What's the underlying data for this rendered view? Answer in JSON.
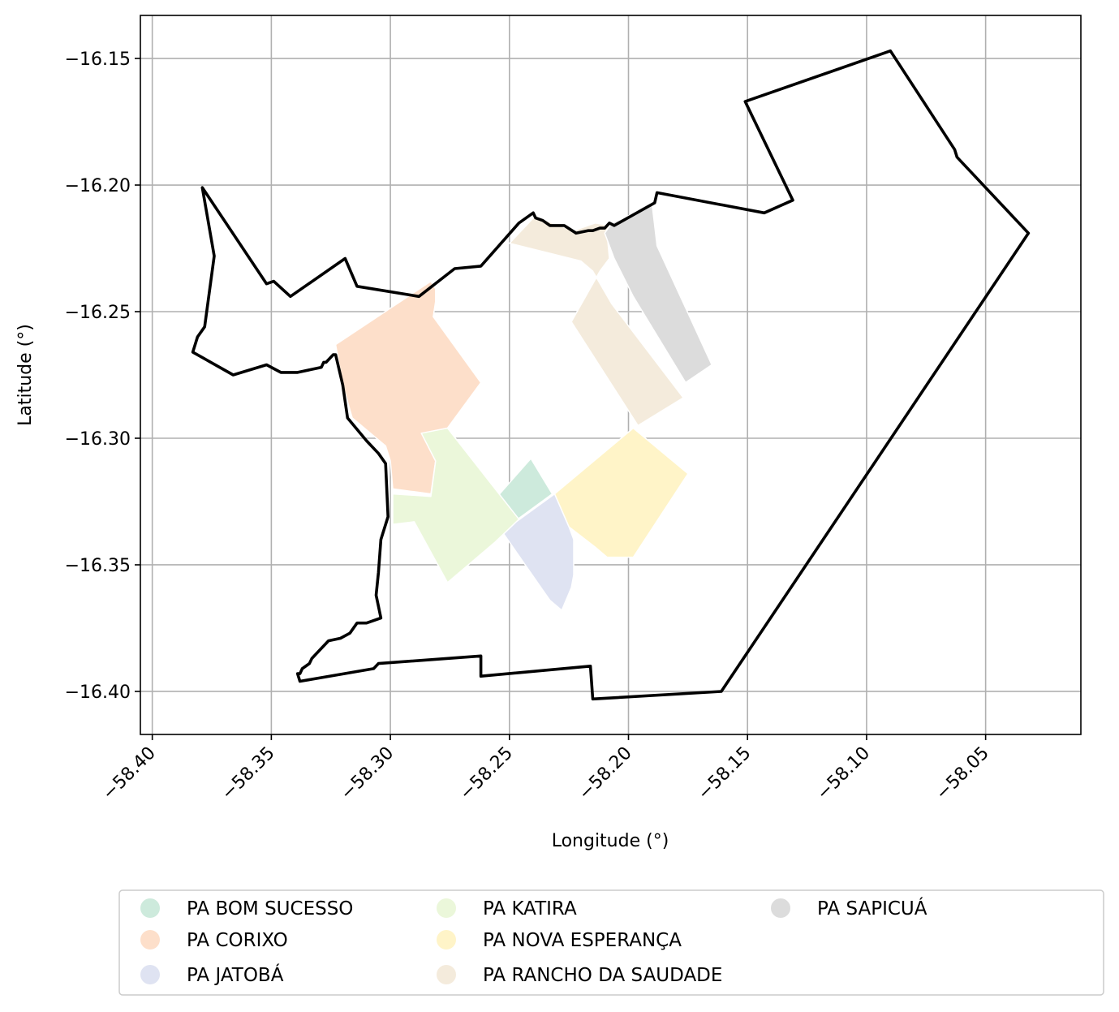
{
  "map": {
    "xlabel": "Longitude (°)",
    "ylabel": "Latitude (°)",
    "xlim": [
      -58.405,
      -58.01
    ],
    "ylim": [
      -16.417,
      -16.133
    ],
    "x_ticks": [
      -58.4,
      -58.35,
      -58.3,
      -58.25,
      -58.2,
      -58.15,
      -58.1,
      -58.05
    ],
    "x_tick_labels": [
      "−58.40",
      "−58.35",
      "−58.30",
      "−58.25",
      "−58.20",
      "−58.15",
      "−58.10",
      "−58.05"
    ],
    "y_ticks": [
      -16.15,
      -16.2,
      -16.25,
      -16.3,
      -16.35,
      -16.4
    ],
    "y_tick_labels": [
      "−16.15",
      "−16.20",
      "−16.25",
      "−16.30",
      "−16.35",
      "−16.40"
    ],
    "grid": true,
    "boundary": {
      "color": "#000000",
      "coords": [
        [
          -58.379,
          -16.201
        ],
        [
          -58.374,
          -16.228
        ],
        [
          -58.378,
          -16.256
        ],
        [
          -58.381,
          -16.26
        ],
        [
          -58.383,
          -16.266
        ],
        [
          -58.366,
          -16.275
        ],
        [
          -58.352,
          -16.271
        ],
        [
          -58.346,
          -16.274
        ],
        [
          -58.339,
          -16.274
        ],
        [
          -58.329,
          -16.272
        ],
        [
          -58.328,
          -16.27
        ],
        [
          -58.327,
          -16.27
        ],
        [
          -58.324,
          -16.267
        ],
        [
          -58.323,
          -16.267
        ],
        [
          -58.32,
          -16.279
        ],
        [
          -58.318,
          -16.292
        ],
        [
          -58.31,
          -16.301
        ],
        [
          -58.305,
          -16.306
        ],
        [
          -58.302,
          -16.31
        ],
        [
          -58.301,
          -16.331
        ],
        [
          -58.304,
          -16.34
        ],
        [
          -58.305,
          -16.353
        ],
        [
          -58.306,
          -16.362
        ],
        [
          -58.304,
          -16.371
        ],
        [
          -58.31,
          -16.373
        ],
        [
          -58.314,
          -16.373
        ],
        [
          -58.317,
          -16.377
        ],
        [
          -58.321,
          -16.379
        ],
        [
          -58.326,
          -16.38
        ],
        [
          -58.33,
          -16.384
        ],
        [
          -58.333,
          -16.387
        ],
        [
          -58.334,
          -16.389
        ],
        [
          -58.337,
          -16.391
        ],
        [
          -58.338,
          -16.393
        ],
        [
          -58.339,
          -16.393
        ],
        [
          -58.338,
          -16.396
        ],
        [
          -58.307,
          -16.391
        ],
        [
          -58.305,
          -16.389
        ],
        [
          -58.262,
          -16.386
        ],
        [
          -58.262,
          -16.394
        ],
        [
          -58.216,
          -16.39
        ],
        [
          -58.215,
          -16.403
        ],
        [
          -58.161,
          -16.4
        ],
        [
          -58.032,
          -16.219
        ],
        [
          -58.062,
          -16.189
        ],
        [
          -58.063,
          -16.186
        ],
        [
          -58.09,
          -16.147
        ],
        [
          -58.151,
          -16.167
        ],
        [
          -58.131,
          -16.206
        ],
        [
          -58.143,
          -16.211
        ],
        [
          -58.188,
          -16.203
        ],
        [
          -58.189,
          -16.207
        ],
        [
          -58.206,
          -16.216
        ],
        [
          -58.208,
          -16.215
        ],
        [
          -58.21,
          -16.217
        ],
        [
          -58.212,
          -16.217
        ],
        [
          -58.215,
          -16.218
        ],
        [
          -58.217,
          -16.218
        ],
        [
          -58.222,
          -16.219
        ],
        [
          -58.227,
          -16.216
        ],
        [
          -58.233,
          -16.216
        ],
        [
          -58.236,
          -16.214
        ],
        [
          -58.239,
          -16.213
        ],
        [
          -58.24,
          -16.211
        ],
        [
          -58.246,
          -16.215
        ],
        [
          -58.262,
          -16.232
        ],
        [
          -58.273,
          -16.233
        ],
        [
          -58.288,
          -16.244
        ],
        [
          -58.314,
          -16.24
        ],
        [
          -58.319,
          -16.229
        ],
        [
          -58.342,
          -16.244
        ],
        [
          -58.349,
          -16.238
        ],
        [
          -58.352,
          -16.239
        ],
        [
          -58.379,
          -16.201
        ]
      ]
    },
    "settlements": [
      {
        "name": "PA BOM SUCESSO",
        "color": "#cdeadc",
        "coords": [
          [
            -58.256,
            -16.324
          ],
          [
            -58.241,
            -16.308
          ],
          [
            -58.232,
            -16.322
          ],
          [
            -58.248,
            -16.333
          ]
        ]
      },
      {
        "name": "PA CORIXO",
        "color": "#fddfca",
        "coords": [
          [
            -58.323,
            -16.263
          ],
          [
            -58.283,
            -16.238
          ],
          [
            -58.281,
            -16.241
          ],
          [
            -58.281,
            -16.246
          ],
          [
            -58.282,
            -16.252
          ],
          [
            -58.262,
            -16.278
          ],
          [
            -58.276,
            -16.296
          ],
          [
            -58.281,
            -16.297
          ],
          [
            -58.285,
            -16.298
          ],
          [
            -58.281,
            -16.309
          ],
          [
            -58.283,
            -16.322
          ],
          [
            -58.299,
            -16.32
          ],
          [
            -58.3,
            -16.309
          ],
          [
            -58.302,
            -16.303
          ],
          [
            -58.316,
            -16.292
          ],
          [
            -58.32,
            -16.279
          ]
        ]
      },
      {
        "name": "PA JATOBÁ",
        "color": "#dfe3f2",
        "coords": [
          [
            -58.231,
            -16.322
          ],
          [
            -58.253,
            -16.337
          ],
          [
            -58.236,
            -16.36
          ],
          [
            -58.233,
            -16.364
          ],
          [
            -58.228,
            -16.368
          ],
          [
            -58.224,
            -16.359
          ],
          [
            -58.223,
            -16.354
          ],
          [
            -58.223,
            -16.34
          ],
          [
            -58.225,
            -16.335
          ]
        ]
      },
      {
        "name": "PA KATIRA",
        "color": "#ebf7da",
        "coords": [
          [
            -58.276,
            -16.296
          ],
          [
            -58.287,
            -16.298
          ],
          [
            -58.281,
            -16.309
          ],
          [
            -58.283,
            -16.323
          ],
          [
            -58.299,
            -16.322
          ],
          [
            -58.299,
            -16.334
          ],
          [
            -58.29,
            -16.333
          ],
          [
            -58.276,
            -16.357
          ],
          [
            -58.256,
            -16.341
          ],
          [
            -58.246,
            -16.332
          ]
        ]
      },
      {
        "name": "PA NOVA ESPERANÇA",
        "color": "#fff4c8",
        "coords": [
          [
            -58.231,
            -16.322
          ],
          [
            -58.198,
            -16.296
          ],
          [
            -58.175,
            -16.314
          ],
          [
            -58.198,
            -16.347
          ],
          [
            -58.209,
            -16.347
          ],
          [
            -58.214,
            -16.343
          ],
          [
            -58.225,
            -16.335
          ]
        ]
      },
      {
        "name": "PA RANCHO DA SAUDADE",
        "color": "#f4ebdc",
        "coords": [
          [
            -58.25,
            -16.223
          ],
          [
            -58.239,
            -16.212
          ],
          [
            -58.232,
            -16.215
          ],
          [
            -58.223,
            -16.218
          ],
          [
            -58.214,
            -16.215
          ],
          [
            -58.208,
            -16.216
          ],
          [
            -58.209,
            -16.219
          ],
          [
            -58.208,
            -16.229
          ],
          [
            -58.212,
            -16.234
          ],
          [
            -58.224,
            -16.254
          ],
          [
            -58.196,
            -16.295
          ],
          [
            -58.177,
            -16.284
          ],
          [
            -58.207,
            -16.247
          ],
          [
            -58.215,
            -16.234
          ],
          [
            -58.22,
            -16.23
          ]
        ]
      },
      {
        "name": "PA SAPICUÁ",
        "color": "#dcdcdc",
        "coords": [
          [
            -58.21,
            -16.219
          ],
          [
            -58.207,
            -16.215
          ],
          [
            -58.19,
            -16.208
          ],
          [
            -58.188,
            -16.224
          ],
          [
            -58.165,
            -16.271
          ],
          [
            -58.176,
            -16.278
          ],
          [
            -58.198,
            -16.244
          ],
          [
            -58.206,
            -16.229
          ]
        ]
      }
    ]
  }
}
